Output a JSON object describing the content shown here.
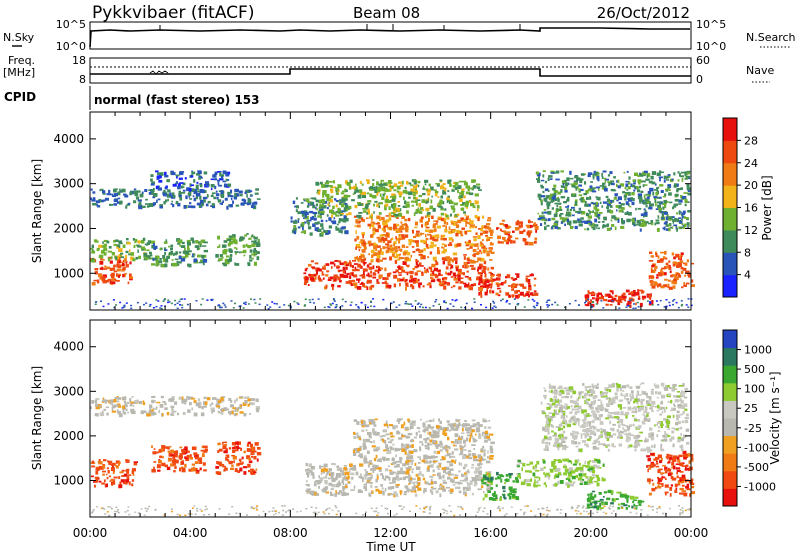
{
  "header": {
    "station": "Pykkvibaer (fitACF)",
    "beam": "Beam 08",
    "date": "26/Oct/2012"
  },
  "top_panels": {
    "nsky_label": "N.Sky",
    "nsky_top_left": "10^5",
    "nsky_bottom_left": "10^0",
    "nsky_top_right": "10^5",
    "nsky_bottom_right": "10^0",
    "nsearch_label": "N.Search",
    "freq_label": "Freq.",
    "freq_unit": "[MHz]",
    "freq_top": "18",
    "freq_bottom": "8",
    "nave_label": "Nave",
    "nave_top": "60",
    "nave_bottom": "0",
    "cpid_label": "CPID",
    "cpid_value": "normal (fast stereo) 153"
  },
  "colors": {
    "power_scale": [
      "#1a22ff",
      "#2a55b8",
      "#3f8a5a",
      "#6fb030",
      "#f2b21a",
      "#f07a14",
      "#ee4a10",
      "#e8100c"
    ],
    "velocity_scale": [
      "#e8100c",
      "#f04810",
      "#f07a14",
      "#f0a020",
      "#b8b8b0",
      "#c8c8c0",
      "#8ecb30",
      "#3aa830",
      "#2a7860",
      "#2444c0"
    ]
  },
  "chart_data": [
    {
      "type": "heatmap",
      "name": "power",
      "xlabel": "",
      "ylabel": "Slant Range [km]",
      "xlim": [
        "00:00",
        "24:00"
      ],
      "ylim": [
        180,
        4600
      ],
      "yticks": [
        "1000",
        "2000",
        "3000",
        "4000"
      ],
      "colorbar_label": "Power [dB]",
      "colorbar_ticks": [
        "4",
        "8",
        "12",
        "16",
        "20",
        "24",
        "28"
      ],
      "colorbar_range": [
        0,
        32
      ],
      "regions": [
        {
          "x": [
            0.0,
            1.6
          ],
          "y": [
            800,
            1400
          ],
          "value": 26
        },
        {
          "x": [
            0.0,
            2.4
          ],
          "y": [
            1300,
            1800
          ],
          "value": 13
        },
        {
          "x": [
            0.0,
            6.7
          ],
          "y": [
            2500,
            2900
          ],
          "value": 8
        },
        {
          "x": [
            2.4,
            5.5
          ],
          "y": [
            2900,
            3300
          ],
          "value": 6
        },
        {
          "x": [
            2.4,
            4.6
          ],
          "y": [
            1200,
            1800
          ],
          "value": 11
        },
        {
          "x": [
            5.0,
            6.7
          ],
          "y": [
            1200,
            1900
          ],
          "value": 12
        },
        {
          "x": [
            8.0,
            10.2
          ],
          "y": [
            1900,
            2700
          ],
          "value": 9
        },
        {
          "x": [
            8.5,
            16.0
          ],
          "y": [
            700,
            1300
          ],
          "value": 27
        },
        {
          "x": [
            10.5,
            16.0
          ],
          "y": [
            1300,
            2300
          ],
          "value": 22
        },
        {
          "x": [
            9.0,
            15.5
          ],
          "y": [
            2300,
            3100
          ],
          "value": 14
        },
        {
          "x": [
            15.5,
            17.8
          ],
          "y": [
            500,
            1000
          ],
          "value": 27
        },
        {
          "x": [
            16.2,
            17.8
          ],
          "y": [
            1700,
            2200
          ],
          "value": 25
        },
        {
          "x": [
            17.8,
            23.9
          ],
          "y": [
            2000,
            3300
          ],
          "value": 10
        },
        {
          "x": [
            19.5,
            22.5
          ],
          "y": [
            300,
            650
          ],
          "value": 29
        },
        {
          "x": [
            22.3,
            24.0
          ],
          "y": [
            700,
            1500
          ],
          "value": 25
        }
      ]
    },
    {
      "type": "heatmap",
      "name": "velocity",
      "xlabel": "Time UT",
      "ylabel": "Slant Range [km]",
      "xlim": [
        "00:00",
        "24:00"
      ],
      "xticks": [
        "00:00",
        "04:00",
        "08:00",
        "12:00",
        "16:00",
        "20:00",
        "00:00"
      ],
      "ylim": [
        180,
        4600
      ],
      "yticks": [
        "1000",
        "2000",
        "3000",
        "4000"
      ],
      "colorbar_label": "Velocity [m s⁻¹]",
      "colorbar_ticks": [
        "1000",
        "500",
        "100",
        "25",
        "-25",
        "-100",
        "-500",
        "-1000"
      ],
      "regions": [
        {
          "x": [
            0.0,
            1.8
          ],
          "y": [
            900,
            1500
          ],
          "value": -300
        },
        {
          "x": [
            0.0,
            6.7
          ],
          "y": [
            2500,
            2900
          ],
          "value": 0
        },
        {
          "x": [
            2.4,
            4.6
          ],
          "y": [
            1200,
            1800
          ],
          "value": -200
        },
        {
          "x": [
            5.0,
            6.7
          ],
          "y": [
            1200,
            1900
          ],
          "value": -250
        },
        {
          "x": [
            8.5,
            16.0
          ],
          "y": [
            700,
            1400
          ],
          "value": 0
        },
        {
          "x": [
            10.5,
            16.0
          ],
          "y": [
            1400,
            2400
          ],
          "value": 5
        },
        {
          "x": [
            15.6,
            17.0
          ],
          "y": [
            600,
            1200
          ],
          "value": 900
        },
        {
          "x": [
            17.0,
            20.5
          ],
          "y": [
            900,
            1500
          ],
          "value": 300
        },
        {
          "x": [
            19.8,
            22.0
          ],
          "y": [
            400,
            800
          ],
          "value": 900
        },
        {
          "x": [
            22.2,
            24.0
          ],
          "y": [
            700,
            1700
          ],
          "value": -400
        },
        {
          "x": [
            18.0,
            23.8
          ],
          "y": [
            1700,
            3200
          ],
          "value": 50
        }
      ]
    }
  ]
}
